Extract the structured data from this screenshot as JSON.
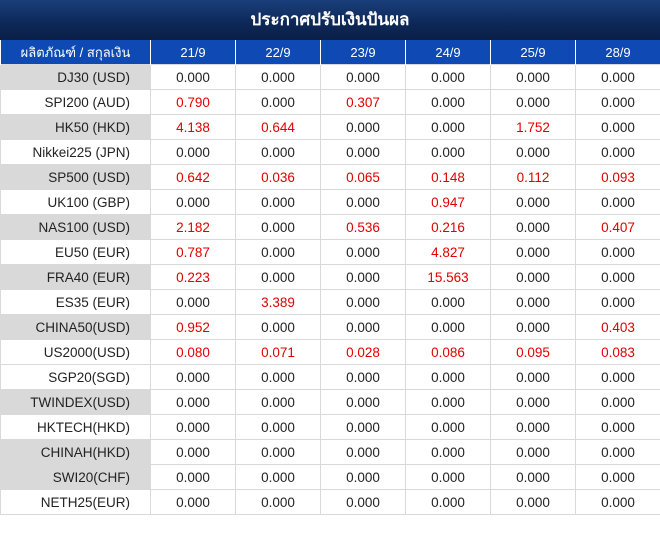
{
  "title": "ประกาศปรับเงินปันผล",
  "header": {
    "product_label": "ผลิตภัณฑ์ / สกุลเงิน",
    "dates": [
      "21/9",
      "22/9",
      "23/9",
      "24/9",
      "25/9",
      "28/9"
    ]
  },
  "rows": [
    {
      "label": "DJ30 (USD)",
      "values": [
        "0.000",
        "0.000",
        "0.000",
        "0.000",
        "0.000",
        "0.000"
      ],
      "shaded": true
    },
    {
      "label": "SPI200 (AUD)",
      "values": [
        "0.790",
        "0.000",
        "0.307",
        "0.000",
        "0.000",
        "0.000"
      ],
      "shaded": false
    },
    {
      "label": "HK50 (HKD)",
      "values": [
        "4.138",
        "0.644",
        "0.000",
        "0.000",
        "1.752",
        "0.000"
      ],
      "shaded": true
    },
    {
      "label": "Nikkei225 (JPN)",
      "values": [
        "0.000",
        "0.000",
        "0.000",
        "0.000",
        "0.000",
        "0.000"
      ],
      "shaded": false
    },
    {
      "label": "SP500 (USD)",
      "values": [
        "0.642",
        "0.036",
        "0.065",
        "0.148",
        "0.112",
        "0.093"
      ],
      "shaded": true
    },
    {
      "label": "UK100 (GBP)",
      "values": [
        "0.000",
        "0.000",
        "0.000",
        "0.947",
        "0.000",
        "0.000"
      ],
      "shaded": false
    },
    {
      "label": "NAS100 (USD)",
      "values": [
        "2.182",
        "0.000",
        "0.536",
        "0.216",
        "0.000",
        "0.407"
      ],
      "shaded": true
    },
    {
      "label": "EU50 (EUR)",
      "values": [
        "0.787",
        "0.000",
        "0.000",
        "4.827",
        "0.000",
        "0.000"
      ],
      "shaded": false
    },
    {
      "label": "FRA40 (EUR)",
      "values": [
        "0.223",
        "0.000",
        "0.000",
        "15.563",
        "0.000",
        "0.000"
      ],
      "shaded": true
    },
    {
      "label": "ES35 (EUR)",
      "values": [
        "0.000",
        "3.389",
        "0.000",
        "0.000",
        "0.000",
        "0.000"
      ],
      "shaded": false
    },
    {
      "label": "CHINA50(USD)",
      "values": [
        "0.952",
        "0.000",
        "0.000",
        "0.000",
        "0.000",
        "0.403"
      ],
      "shaded": true
    },
    {
      "label": "US2000(USD)",
      "values": [
        "0.080",
        "0.071",
        "0.028",
        "0.086",
        "0.095",
        "0.083"
      ],
      "shaded": false
    },
    {
      "label": "SGP20(SGD)",
      "values": [
        "0.000",
        "0.000",
        "0.000",
        "0.000",
        "0.000",
        "0.000"
      ],
      "shaded": false
    },
    {
      "label": "TWINDEX(USD)",
      "values": [
        "0.000",
        "0.000",
        "0.000",
        "0.000",
        "0.000",
        "0.000"
      ],
      "shaded": true
    },
    {
      "label": "HKTECH(HKD)",
      "values": [
        "0.000",
        "0.000",
        "0.000",
        "0.000",
        "0.000",
        "0.000"
      ],
      "shaded": false
    },
    {
      "label": "CHINAH(HKD)",
      "values": [
        "0.000",
        "0.000",
        "0.000",
        "0.000",
        "0.000",
        "0.000"
      ],
      "shaded": true
    },
    {
      "label": "SWI20(CHF)",
      "values": [
        "0.000",
        "0.000",
        "0.000",
        "0.000",
        "0.000",
        "0.000"
      ],
      "shaded": true
    },
    {
      "label": "NETH25(EUR)",
      "values": [
        "0.000",
        "0.000",
        "0.000",
        "0.000",
        "0.000",
        "0.000"
      ],
      "shaded": false
    }
  ],
  "colors": {
    "title_bg": "#0d2757",
    "header_bg": "#0f4ab4",
    "label_shade": "#d9d9d9",
    "nonzero_text": "#e00000",
    "zero_text": "#222222"
  }
}
